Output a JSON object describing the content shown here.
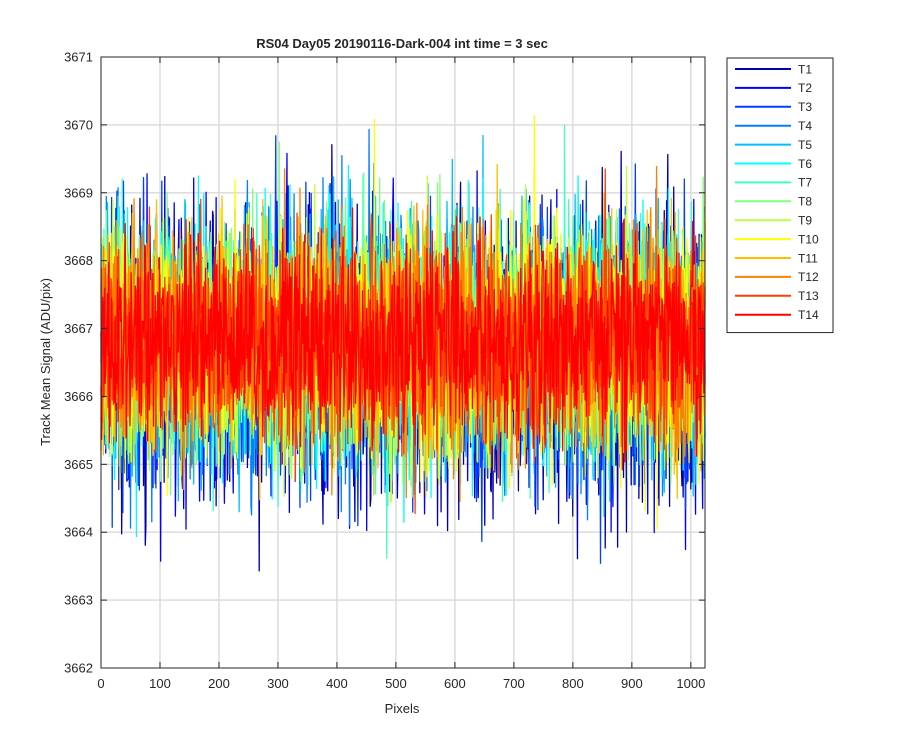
{
  "chart_data": {
    "type": "line",
    "title": "RS04 Day05 20190116-Dark-004 int time = 3 sec",
    "xlabel": "Pixels",
    "ylabel": "Track Mean Signal (ADU/pix)",
    "xlim": [
      0,
      1024
    ],
    "ylim": [
      3662,
      3671
    ],
    "xticks": [
      0,
      100,
      200,
      300,
      400,
      500,
      600,
      700,
      800,
      900,
      1000
    ],
    "yticks": [
      3662,
      3663,
      3664,
      3665,
      3666,
      3667,
      3668,
      3669,
      3670,
      3671
    ],
    "grid": true,
    "legend_position": "outside-top-right",
    "num_points": 1024,
    "series": [
      {
        "name": "T1",
        "color": "#0000b3",
        "center": 3666.6,
        "amplitude": 1.75
      },
      {
        "name": "T2",
        "color": "#0000ff",
        "center": 3666.6,
        "amplitude": 1.7
      },
      {
        "name": "T3",
        "color": "#0040ff",
        "center": 3666.7,
        "amplitude": 1.65
      },
      {
        "name": "T4",
        "color": "#0080ff",
        "center": 3666.7,
        "amplitude": 1.6
      },
      {
        "name": "T5",
        "color": "#00bfff",
        "center": 3666.7,
        "amplitude": 1.55
      },
      {
        "name": "T6",
        "color": "#00ffff",
        "center": 3666.8,
        "amplitude": 1.5
      },
      {
        "name": "T7",
        "color": "#40ffbf",
        "center": 3666.8,
        "amplitude": 1.45
      },
      {
        "name": "T8",
        "color": "#80ff80",
        "center": 3666.8,
        "amplitude": 1.45
      },
      {
        "name": "T9",
        "color": "#bfff40",
        "center": 3666.8,
        "amplitude": 1.4
      },
      {
        "name": "T10",
        "color": "#ffff00",
        "center": 3666.8,
        "amplitude": 1.4
      },
      {
        "name": "T11",
        "color": "#ffbf00",
        "center": 3666.8,
        "amplitude": 1.35
      },
      {
        "name": "T12",
        "color": "#ff8000",
        "center": 3666.8,
        "amplitude": 1.3
      },
      {
        "name": "T13",
        "color": "#ff4000",
        "center": 3666.8,
        "amplitude": 1.25
      },
      {
        "name": "T14",
        "color": "#ff0000",
        "center": 3666.8,
        "amplitude": 1.2
      }
    ]
  }
}
